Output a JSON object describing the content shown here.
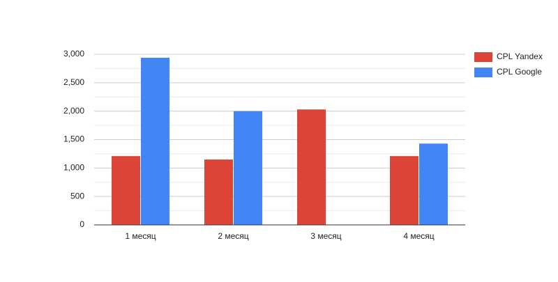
{
  "chart_data": {
    "type": "bar",
    "categories": [
      "1 месяц",
      "2 месяц",
      "3 месяц",
      "4 месяц"
    ],
    "series": [
      {
        "name": "CPL Yandex",
        "color": "#db4437",
        "values": [
          1210,
          1150,
          2030,
          1210
        ]
      },
      {
        "name": "CPL Google",
        "color": "#4285f4",
        "values": [
          2940,
          2000,
          null,
          1430
        ]
      }
    ],
    "ylim": [
      0,
      3000
    ],
    "yticks": [
      0,
      500,
      {
        "value": 1000,
        "label": "1,000"
      },
      {
        "value": 1500,
        "label": "1,500"
      },
      {
        "value": 2000,
        "label": "2,000"
      },
      {
        "value": 2500,
        "label": "2,500"
      },
      {
        "value": 3000,
        "label": "3,000"
      }
    ],
    "grid": true,
    "minor_grid": true,
    "legend": "right"
  }
}
